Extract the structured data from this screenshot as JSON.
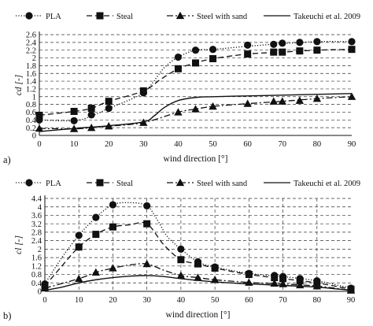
{
  "chart_data": [
    {
      "type": "line",
      "panel_label": "a)",
      "xlabel": "wind direction [°]",
      "ylabel": "cd [-]",
      "xlim": [
        0,
        90
      ],
      "ylim": [
        0,
        2.6
      ],
      "x_ticks": [
        0,
        10,
        20,
        30,
        40,
        50,
        60,
        70,
        80,
        90
      ],
      "x_tick_labels": [
        "0",
        "10",
        "20",
        "30",
        "40",
        "50",
        "60",
        "70",
        "80",
        "90"
      ],
      "y_ticks": [
        0,
        0.2,
        0.4,
        0.6,
        0.8,
        1.0,
        1.2,
        1.4,
        1.6,
        1.8,
        2.0,
        2.2,
        2.4,
        2.6
      ],
      "y_tick_labels": [
        "0",
        "0.2",
        "0.4",
        "0.6",
        "0.8",
        "1",
        "1.2",
        "1.4",
        "1.6",
        "1.8",
        "2",
        "2.2",
        "2.4",
        "2.6"
      ],
      "grid": "horizontal dashed",
      "legend_position": "top",
      "series": [
        {
          "name": "PLA",
          "style": "dotted",
          "marker": "circle",
          "x": [
            0,
            10,
            15,
            20,
            30,
            40,
            45,
            50,
            60,
            67.5,
            70,
            75,
            80,
            90
          ],
          "y": [
            0.4,
            0.38,
            0.53,
            0.7,
            1.1,
            2.02,
            2.2,
            2.22,
            2.33,
            2.35,
            2.38,
            2.4,
            2.42,
            2.42
          ],
          "curve_x": [
            0,
            10,
            15,
            20,
            25,
            30,
            33,
            36,
            40,
            45,
            50,
            60,
            70,
            80,
            90
          ],
          "curve_y": [
            0.4,
            0.38,
            0.5,
            0.7,
            0.88,
            1.1,
            1.4,
            1.75,
            2.02,
            2.2,
            2.22,
            2.3,
            2.37,
            2.42,
            2.42
          ]
        },
        {
          "name": "Steal",
          "style": "dashed",
          "marker": "square",
          "x": [
            0,
            10,
            15,
            20,
            30,
            40,
            45,
            50,
            60,
            67.5,
            70,
            75,
            80,
            90
          ],
          "y": [
            0.52,
            0.62,
            0.7,
            0.88,
            1.15,
            1.72,
            1.87,
            1.98,
            2.1,
            2.15,
            2.15,
            2.18,
            2.2,
            2.22
          ],
          "curve_x": [
            0,
            10,
            15,
            20,
            30,
            35,
            40,
            45,
            50,
            60,
            70,
            80,
            90
          ],
          "curve_y": [
            0.52,
            0.62,
            0.7,
            0.88,
            1.15,
            1.45,
            1.72,
            1.87,
            1.98,
            2.1,
            2.15,
            2.2,
            2.22
          ]
        },
        {
          "name": "Steel with sand",
          "style": "dashdot",
          "marker": "triangle",
          "x": [
            0,
            10,
            15,
            20,
            30,
            40,
            45,
            50,
            60,
            67.5,
            70,
            75,
            80,
            90
          ],
          "y": [
            0.18,
            0.17,
            0.2,
            0.24,
            0.33,
            0.6,
            0.68,
            0.75,
            0.82,
            0.88,
            0.88,
            0.9,
            0.95,
            1.0
          ],
          "curve_x": [
            0,
            10,
            15,
            20,
            30,
            40,
            45,
            50,
            60,
            70,
            80,
            90
          ],
          "curve_y": [
            0.18,
            0.17,
            0.2,
            0.24,
            0.33,
            0.6,
            0.68,
            0.75,
            0.82,
            0.88,
            0.95,
            1.0
          ]
        },
        {
          "name": "Takeuchi et al. 2009",
          "style": "solid",
          "marker": "none",
          "curve_x": [
            0,
            10,
            20,
            30,
            33,
            36,
            40,
            45,
            50,
            60,
            70,
            80,
            90
          ],
          "curve_y": [
            0.1,
            0.18,
            0.25,
            0.35,
            0.5,
            0.72,
            0.9,
            0.98,
            1.0,
            1.02,
            1.04,
            1.06,
            1.08
          ]
        }
      ]
    },
    {
      "type": "line",
      "panel_label": "b)",
      "xlabel": "wind direction [°]",
      "ylabel": "cl [-]",
      "xlim": [
        0,
        90
      ],
      "ylim": [
        0,
        4.4
      ],
      "x_ticks": [
        0,
        10,
        20,
        30,
        40,
        50,
        60,
        70,
        80,
        90
      ],
      "x_tick_labels": [
        "0",
        "10",
        "20",
        "30",
        "40",
        "50",
        "60",
        "70",
        "80",
        "90"
      ],
      "y_ticks": [
        0,
        0.4,
        0.8,
        1.2,
        1.6,
        2.0,
        2.4,
        2.8,
        3.2,
        3.6,
        4.0,
        4.4
      ],
      "y_tick_labels": [
        "0",
        "0.4",
        "0.8",
        "1.2",
        "1.6",
        "2",
        "2.4",
        "2.8",
        "3.2",
        "3.6",
        "4",
        "4.4"
      ],
      "grid": "horizontal and vertical dashed",
      "legend_position": "top",
      "series": [
        {
          "name": "PLA",
          "style": "dotted",
          "marker": "circle",
          "x": [
            0,
            10,
            15,
            20,
            30,
            40,
            45,
            50,
            60,
            67.5,
            70,
            75,
            80,
            90
          ],
          "y": [
            0.35,
            2.65,
            3.5,
            4.1,
            4.05,
            2.0,
            1.4,
            1.15,
            0.85,
            0.75,
            0.7,
            0.6,
            0.5,
            0.15
          ],
          "curve_x": [
            0,
            5,
            10,
            15,
            20,
            25,
            30,
            33,
            36,
            40,
            45,
            50,
            60,
            70,
            80,
            90
          ],
          "curve_y": [
            0.35,
            1.6,
            2.65,
            3.5,
            4.1,
            4.2,
            4.05,
            3.4,
            2.6,
            2.0,
            1.4,
            1.15,
            0.85,
            0.7,
            0.5,
            0.15
          ]
        },
        {
          "name": "Steal",
          "style": "dashed",
          "marker": "square",
          "x": [
            0,
            10,
            15,
            20,
            30,
            40,
            45,
            50,
            60,
            67.5,
            70,
            75,
            80,
            90
          ],
          "y": [
            0.25,
            2.1,
            2.7,
            3.05,
            3.2,
            1.5,
            1.3,
            1.1,
            0.8,
            0.65,
            0.6,
            0.5,
            0.4,
            0.1
          ],
          "curve_x": [
            0,
            5,
            10,
            15,
            20,
            25,
            30,
            35,
            40,
            45,
            50,
            60,
            70,
            80,
            90
          ],
          "curve_y": [
            0.25,
            1.2,
            2.1,
            2.7,
            3.05,
            3.15,
            3.2,
            2.2,
            1.5,
            1.3,
            1.1,
            0.8,
            0.6,
            0.4,
            0.1
          ]
        },
        {
          "name": "Steel with sand",
          "style": "dashdot",
          "marker": "triangle",
          "x": [
            0,
            10,
            15,
            20,
            30,
            40,
            45,
            50,
            60,
            67.5,
            70,
            75,
            80,
            90
          ],
          "y": [
            0.15,
            0.6,
            0.9,
            1.1,
            1.3,
            0.75,
            0.65,
            0.55,
            0.42,
            0.38,
            0.35,
            0.3,
            0.25,
            0.05
          ],
          "curve_x": [
            0,
            10,
            15,
            20,
            25,
            30,
            35,
            40,
            45,
            50,
            60,
            70,
            80,
            90
          ],
          "curve_y": [
            0.15,
            0.6,
            0.9,
            1.1,
            1.25,
            1.3,
            1.0,
            0.75,
            0.65,
            0.55,
            0.42,
            0.35,
            0.25,
            0.05
          ]
        },
        {
          "name": "Takeuchi et al. 2009",
          "style": "solid",
          "marker": "none",
          "curve_x": [
            0,
            5,
            10,
            15,
            20,
            25,
            30,
            35,
            40,
            50,
            60,
            70,
            80,
            90
          ],
          "curve_y": [
            0.05,
            0.2,
            0.4,
            0.55,
            0.65,
            0.72,
            0.75,
            0.7,
            0.6,
            0.45,
            0.35,
            0.28,
            0.2,
            0.05
          ]
        }
      ]
    }
  ]
}
